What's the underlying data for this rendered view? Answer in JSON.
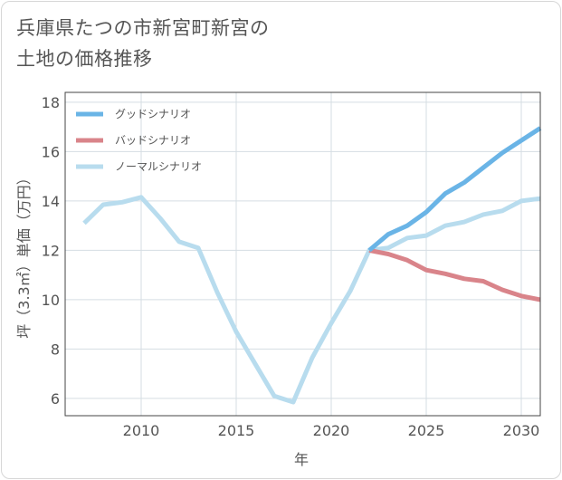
{
  "title_line1": "兵庫県たつの市新宮町新宮の",
  "title_line2": "土地の価格推移",
  "chart_data": {
    "type": "line",
    "xlabel": "年",
    "ylabel": "坪（3.3㎡）単価（万円）",
    "xlim": [
      2006,
      2031
    ],
    "ylim": [
      5.3,
      18.4
    ],
    "xticks": [
      2010,
      2015,
      2020,
      2025,
      2030
    ],
    "yticks": [
      6,
      8,
      10,
      12,
      14,
      16,
      18
    ],
    "grid": true,
    "legend_position": "top-left",
    "series": [
      {
        "name": "グッドシナリオ",
        "color": "#6ab4e6",
        "x": [
          2022,
          2023,
          2024,
          2025,
          2026,
          2027,
          2028,
          2029,
          2030,
          2031
        ],
        "y": [
          12.0,
          12.65,
          13.0,
          13.55,
          14.3,
          14.75,
          15.35,
          15.95,
          16.45,
          16.95
        ]
      },
      {
        "name": "バッドシナリオ",
        "color": "#d9848a",
        "x": [
          2022,
          2023,
          2024,
          2025,
          2026,
          2027,
          2028,
          2029,
          2030,
          2031
        ],
        "y": [
          12.0,
          11.85,
          11.6,
          11.2,
          11.05,
          10.85,
          10.75,
          10.4,
          10.15,
          10.0
        ]
      },
      {
        "name": "ノーマルシナリオ",
        "color": "#b8dcee",
        "x": [
          2007,
          2008,
          2009,
          2010,
          2011,
          2012,
          2013,
          2014,
          2015,
          2016,
          2017,
          2018,
          2019,
          2020,
          2021,
          2022,
          2023,
          2024,
          2025,
          2026,
          2027,
          2028,
          2029,
          2030,
          2031
        ],
        "y": [
          13.1,
          13.85,
          13.95,
          14.15,
          13.3,
          12.35,
          12.1,
          10.3,
          8.7,
          7.4,
          6.1,
          5.85,
          7.65,
          9.05,
          10.35,
          12.0,
          12.1,
          12.5,
          12.6,
          13.0,
          13.15,
          13.45,
          13.6,
          14.0,
          14.1
        ]
      }
    ]
  }
}
